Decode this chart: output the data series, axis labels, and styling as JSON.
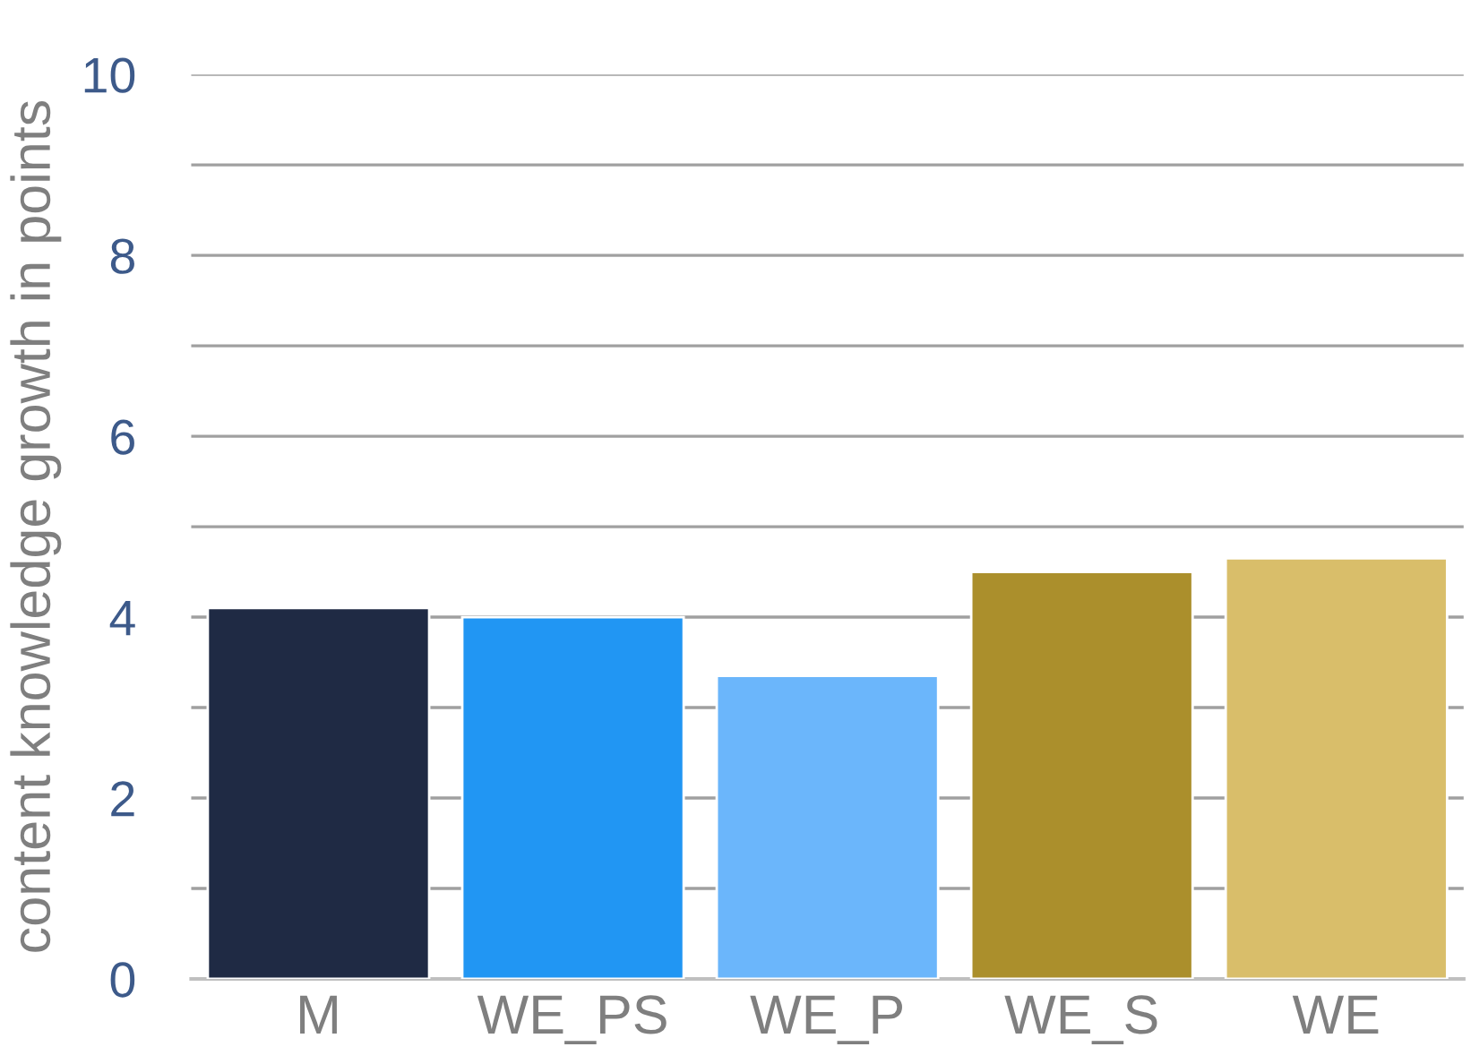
{
  "chart_data": {
    "type": "bar",
    "ylabel": "content knowledge growth in points",
    "categories": [
      "M",
      "WE_PS",
      "WE_P",
      "WE_S",
      "WE"
    ],
    "values": [
      4.1,
      4.0,
      3.35,
      4.5,
      4.65
    ],
    "colors": [
      "#1f2a44",
      "#2196f3",
      "#6bb6fb",
      "#ab8f2c",
      "#d9be6a"
    ],
    "ylim": [
      0,
      10
    ],
    "yticks": [
      0,
      {
        "value": 1,
        "label": null
      },
      2,
      {
        "value": 3,
        "label": null
      },
      4,
      {
        "value": 5,
        "label": null
      },
      6,
      {
        "value": 7,
        "label": null
      },
      8,
      {
        "value": 9,
        "label": null
      },
      10
    ],
    "grid": "y"
  }
}
